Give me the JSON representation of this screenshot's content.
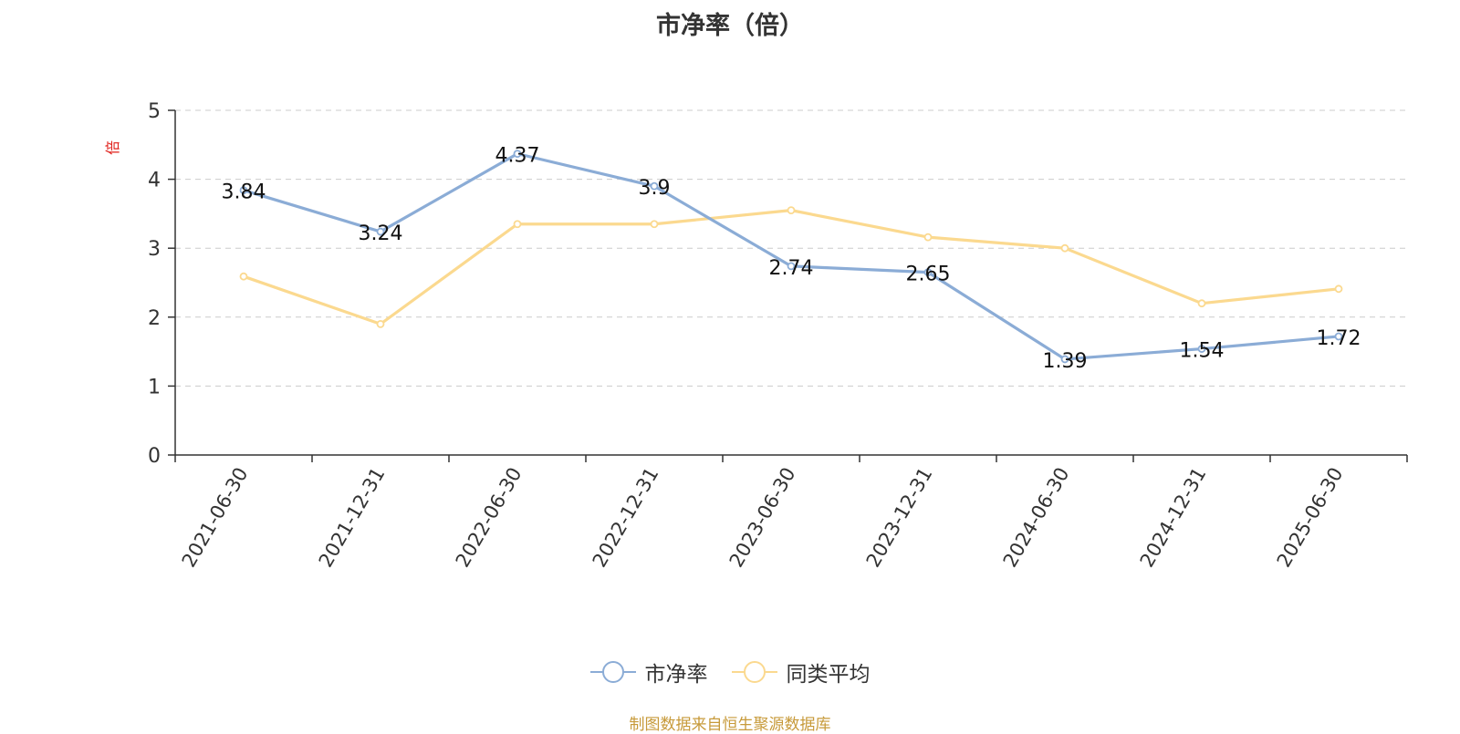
{
  "page": {
    "title": "市净率（倍）",
    "y_unit": "倍",
    "source": "制图数据来自恒生聚源数据库"
  },
  "colors": {
    "pb": "#8bacd6",
    "avg": "#fbd98f",
    "grid": "#cccccc",
    "axis": "#333333",
    "label": "#111111"
  },
  "legend": {
    "items": [
      {
        "label": "市净率"
      },
      {
        "label": "同类平均"
      }
    ]
  },
  "chart_data": {
    "type": "line",
    "title": "市净率（倍）",
    "ylabel": "倍",
    "ylim": [
      0,
      5
    ],
    "yticks": [
      0,
      1,
      2,
      3,
      4,
      5
    ],
    "grid": true,
    "legend_position": "bottom",
    "x": [
      "2021-06-30",
      "2021-12-31",
      "2022-06-30",
      "2022-12-31",
      "2023-06-30",
      "2023-12-31",
      "2024-06-30",
      "2024-12-31",
      "2025-06-30"
    ],
    "series": [
      {
        "name": "市净率",
        "values": [
          3.84,
          3.24,
          4.37,
          3.9,
          2.74,
          2.65,
          1.39,
          1.54,
          1.72
        ],
        "labels": [
          "3.84",
          "3.24",
          "4.37",
          "3.9",
          "2.74",
          "2.65",
          "1.39",
          "1.54",
          "1.72"
        ],
        "color": "#8bacd6"
      },
      {
        "name": "同类平均",
        "values": [
          2.59,
          1.9,
          3.35,
          3.35,
          3.55,
          3.16,
          3.0,
          2.2,
          2.41
        ],
        "color": "#fbd98f"
      }
    ]
  }
}
